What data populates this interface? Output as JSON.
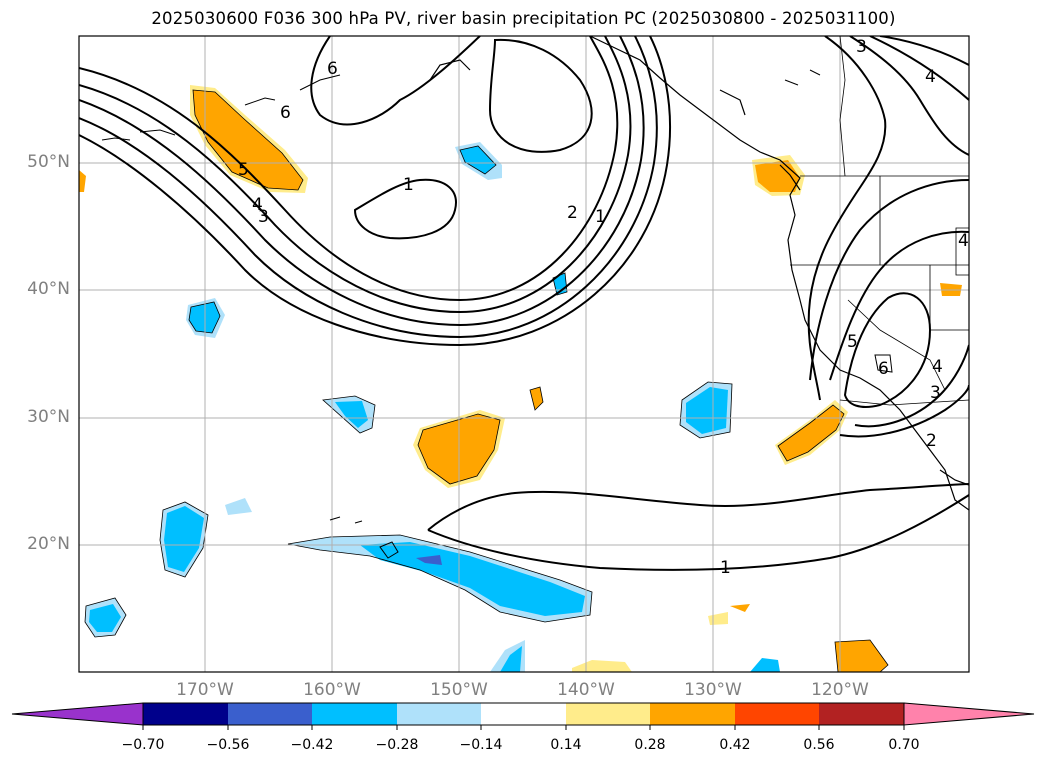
{
  "title": "2025030600 F036 300 hPa PV, river basin precipitation PC (2025030800 - 2025031100)",
  "lat_ticks": [
    "50°N",
    "40°N",
    "30°N",
    "20°N"
  ],
  "lon_ticks": [
    "170°W",
    "160°W",
    "150°W",
    "140°W",
    "130°W",
    "120°W"
  ],
  "contour_labels": [
    "6",
    "6",
    "5",
    "4",
    "3",
    "1",
    "2",
    "1",
    "3",
    "4",
    "5",
    "6",
    "4",
    "3",
    "2",
    "1",
    "4"
  ],
  "colorbar": {
    "ticks": [
      "−0.70",
      "−0.56",
      "−0.42",
      "−0.28",
      "−0.14",
      "0.14",
      "0.28",
      "0.42",
      "0.56",
      "0.70"
    ],
    "colors": [
      "#9932cc",
      "#00008b",
      "#3a5fcd",
      "#00bfff",
      "#afe1fa",
      "#ffffff",
      "#ffec8b",
      "#ffa500",
      "#ff4500",
      "#b22222",
      "#ff82ab"
    ]
  }
}
